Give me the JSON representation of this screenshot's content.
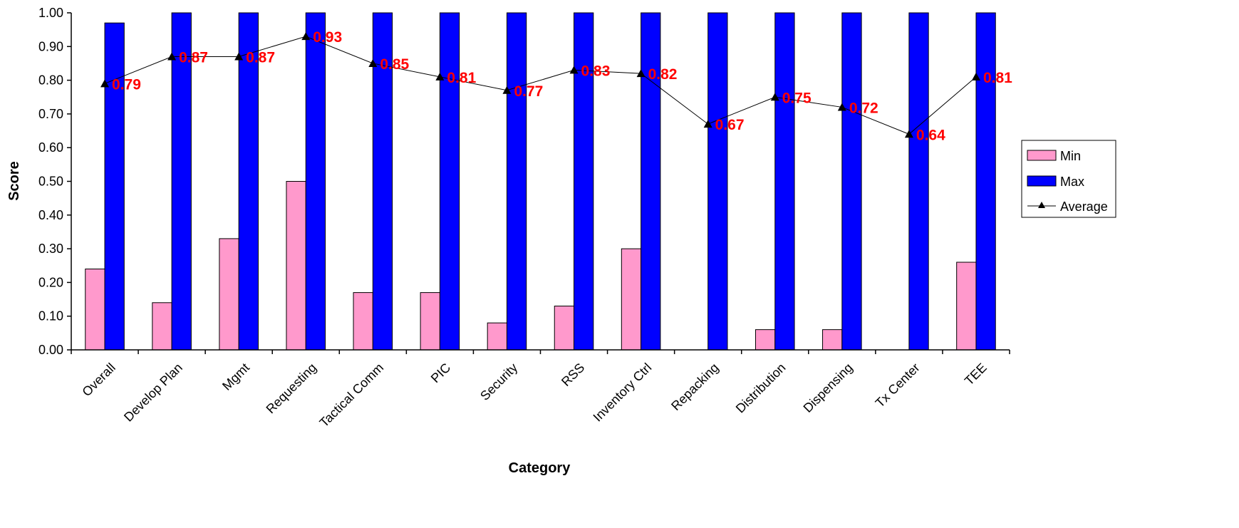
{
  "chart_data": {
    "type": "bar",
    "categories": [
      "Overall",
      "Develop Plan",
      "Mgmt",
      "Requesting",
      "Tactical Comm",
      "PIC",
      "Security",
      "RSS",
      "Inventory Ctrl",
      "Repacking",
      "Distribution",
      "Dispensing",
      "Tx Center",
      "TEE"
    ],
    "series": [
      {
        "name": "Min",
        "type": "bar",
        "values": [
          0.24,
          0.14,
          0.33,
          0.5,
          0.17,
          0.17,
          0.08,
          0.13,
          0.3,
          0.0,
          0.06,
          0.06,
          0.0,
          0.26
        ]
      },
      {
        "name": "Max",
        "type": "bar",
        "values": [
          0.97,
          1.0,
          1.0,
          1.0,
          1.0,
          1.0,
          1.0,
          1.0,
          1.0,
          1.0,
          1.0,
          1.0,
          1.0,
          1.0
        ]
      },
      {
        "name": "Average",
        "type": "line",
        "values": [
          0.79,
          0.87,
          0.87,
          0.93,
          0.85,
          0.81,
          0.77,
          0.83,
          0.82,
          0.67,
          0.75,
          0.72,
          0.64,
          0.81
        ]
      }
    ],
    "data_labels": [
      "0.79",
      "0.87",
      "0.87",
      "0.93",
      "0.85",
      "0.81",
      "0.77",
      "0.83",
      "0.82",
      "0.67",
      "0.75",
      "0.72",
      "0.64",
      "0.81"
    ],
    "yticks": [
      "0.00",
      "0.10",
      "0.20",
      "0.30",
      "0.40",
      "0.50",
      "0.60",
      "0.70",
      "0.80",
      "0.90",
      "1.00"
    ],
    "xlabel": "Category",
    "ylabel": "Score",
    "ylim": [
      0,
      1
    ],
    "grid": false,
    "legend": "right",
    "colors": {
      "min": "#ff99cc",
      "max": "#0000ff",
      "average": "#000000",
      "label": "#ff0000"
    }
  }
}
